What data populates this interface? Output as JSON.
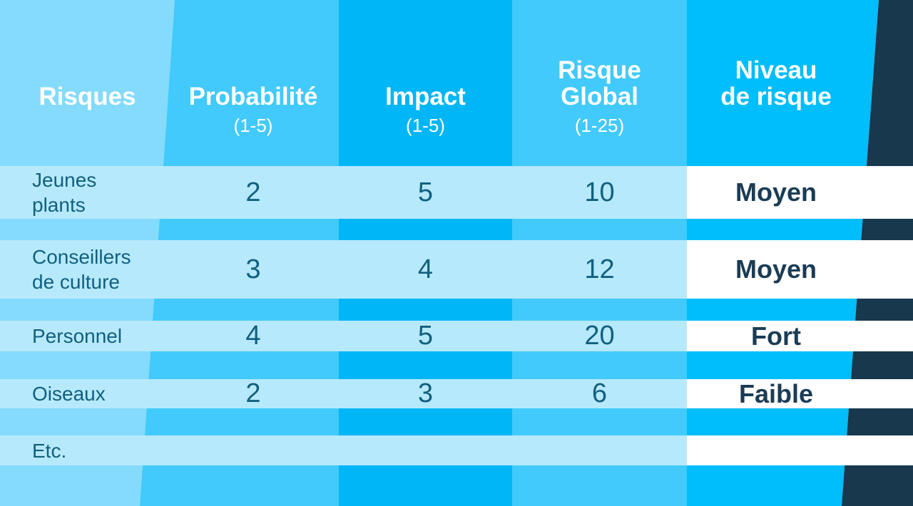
{
  "palette": {
    "col_risques_bg": "#84DBFB",
    "col_probabilite_bg": "#41CAFB",
    "col_impact_bg": "#00B6F7",
    "col_risque_global_bg": "#41CAFB",
    "col_niveau_bg": "#00BDFC",
    "dark_wedge": "#17384D",
    "data_row_bg": "#B7E9FD",
    "level_cell_bg": "#FFFFFF",
    "header_text": "#FFFFFF",
    "cell_text": "#11607F",
    "level_text": "#1B3C55"
  },
  "header": {
    "col1": {
      "title": "Risques"
    },
    "col2": {
      "title": "Probabilité",
      "sub": "(1-5)"
    },
    "col3": {
      "title": "Impact",
      "sub": "(1-5)"
    },
    "col4": {
      "title_line1": "Risque",
      "title_line2": "Global",
      "sub": "(1-25)"
    },
    "col5": {
      "title_line1": "Niveau",
      "title_line2": "de risque"
    }
  },
  "rows": [
    {
      "name_line1": "Jeunes",
      "name_line2": "plants",
      "probabilite": "2",
      "impact": "5",
      "risque_global": "10",
      "niveau": "Moyen"
    },
    {
      "name_line1": "Conseillers",
      "name_line2": "de culture",
      "probabilite": "3",
      "impact": "4",
      "risque_global": "12",
      "niveau": "Moyen"
    },
    {
      "name_line1": "Personnel",
      "name_line2": "",
      "probabilite": "4",
      "impact": "5",
      "risque_global": "20",
      "niveau": "Fort"
    },
    {
      "name_line1": "Oiseaux",
      "name_line2": "",
      "probabilite": "2",
      "impact": "3",
      "risque_global": "6",
      "niveau": "Faible"
    },
    {
      "name_line1": "Etc.",
      "name_line2": "",
      "probabilite": "",
      "impact": "",
      "risque_global": "",
      "niveau": ""
    }
  ]
}
